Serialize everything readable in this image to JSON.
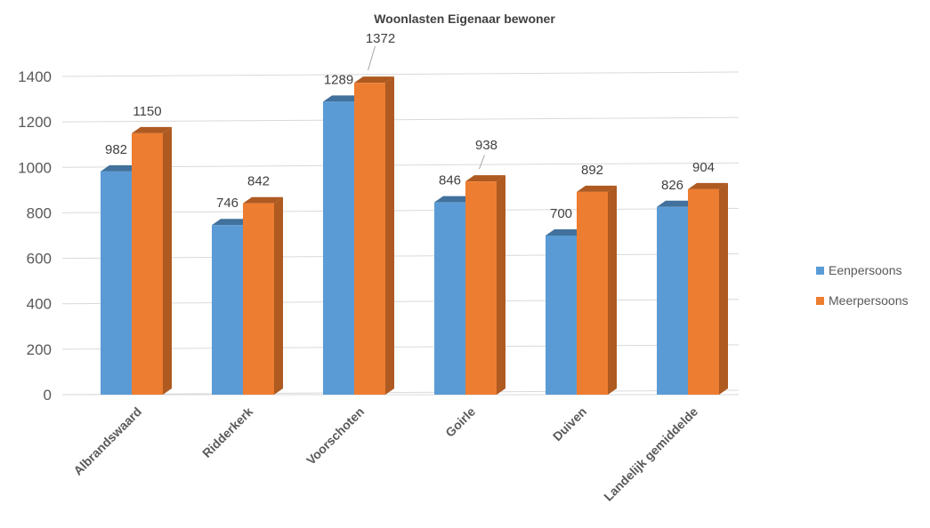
{
  "chart_data": {
    "type": "bar",
    "title": "Woonlasten Eigenaar bewoner",
    "xlabel": "",
    "ylabel": "",
    "categories": [
      "Albrandswaard",
      "Ridderkerk",
      "Voorschoten",
      "Goirle",
      "Duiven",
      "Landelijk gemiddelde"
    ],
    "series": [
      {
        "name": "Eenpersoons",
        "values": [
          982,
          746,
          1289,
          846,
          700,
          826
        ],
        "color": "#5B9BD5",
        "side_color": "#41719C"
      },
      {
        "name": "Meerpersoons",
        "values": [
          1150,
          842,
          1372,
          938,
          892,
          904
        ],
        "color": "#ED7D31",
        "side_color": "#AE5A21"
      }
    ],
    "ylim": [
      0,
      1400
    ],
    "yticks": [
      0,
      200,
      400,
      600,
      800,
      1000,
      1200,
      1400
    ],
    "grid": true,
    "legend": "right",
    "style": "3d-clustered-column"
  }
}
